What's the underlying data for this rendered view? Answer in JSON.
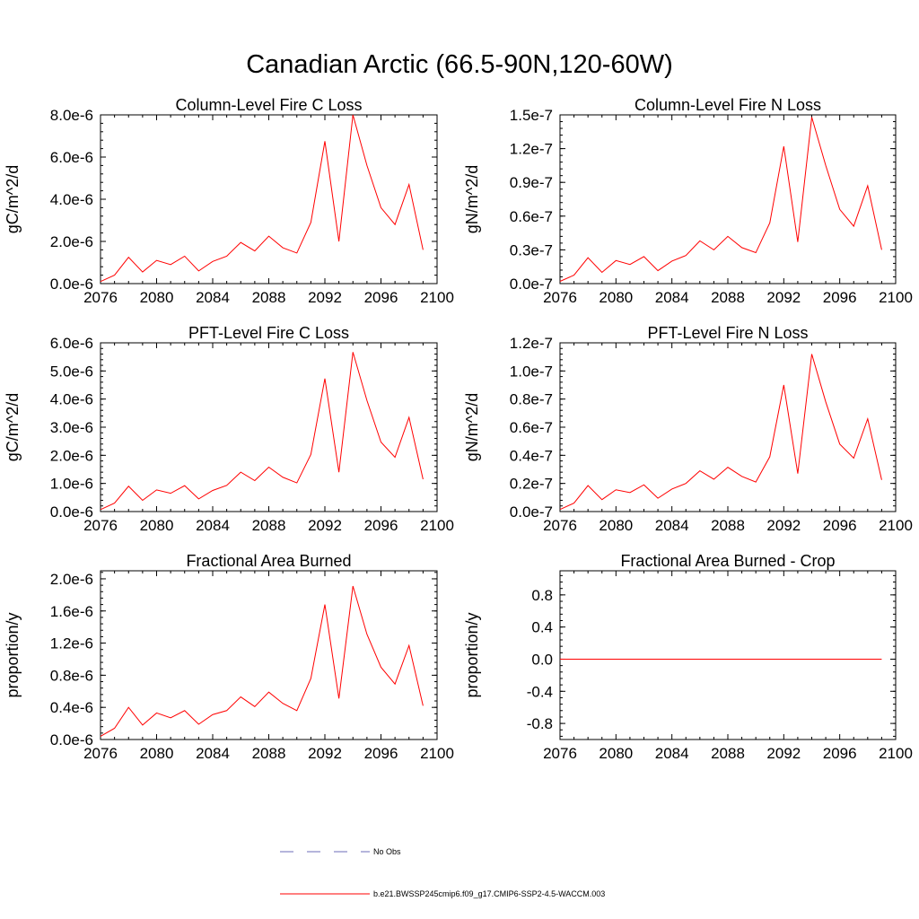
{
  "title": "Canadian Arctic (66.5-90N,120-60W)",
  "colors": {
    "model": "#ff0000",
    "obs": "#6b6bb8",
    "axis": "#000000"
  },
  "legend": [
    {
      "label": "No Obs",
      "style": "dashed",
      "color": "#6b6bb8"
    },
    {
      "label": "b.e21.BWSSP245cmip6.f09_g17.CMIP6-SSP2-4.5-WACCM.003",
      "style": "solid",
      "color": "#ff0000"
    }
  ],
  "chart_data": [
    {
      "type": "line",
      "title": "Column-Level Fire C Loss",
      "ylabel": "gC/m^2/d",
      "xlim": [
        2076,
        2100
      ],
      "ylim": [
        0,
        8e-06
      ],
      "xticks": [
        2076,
        2080,
        2084,
        2088,
        2092,
        2096,
        2100
      ],
      "yticks": [
        0,
        2e-06,
        4e-06,
        6e-06,
        8e-06
      ],
      "yticklabels": [
        "0.0e-6",
        "2.0e-6",
        "4.0e-6",
        "6.0e-6",
        "8.0e-6"
      ],
      "series": [
        {
          "name": "b.e21.BWSSP245cmip6.f09_g17.CMIP6-SSP2-4.5-WACCM.003",
          "x": [
            2076,
            2077,
            2078,
            2079,
            2080,
            2081,
            2082,
            2083,
            2084,
            2085,
            2086,
            2087,
            2088,
            2089,
            2090,
            2091,
            2092,
            2093,
            2094,
            2095,
            2096,
            2097,
            2098,
            2099
          ],
          "values": [
            1e-07,
            4e-07,
            1.25e-06,
            5.5e-07,
            1.1e-06,
            9e-07,
            1.3e-06,
            6e-07,
            1.05e-06,
            1.3e-06,
            1.95e-06,
            1.55e-06,
            2.25e-06,
            1.7e-06,
            1.45e-06,
            2.9e-06,
            6.75e-06,
            2e-06,
            8e-06,
            5.6e-06,
            3.6e-06,
            2.8e-06,
            4.7e-06,
            1.6e-06
          ]
        }
      ]
    },
    {
      "type": "line",
      "title": "Column-Level Fire N Loss",
      "ylabel": "gN/m^2/d",
      "xlim": [
        2076,
        2100
      ],
      "ylim": [
        0,
        1.5e-07
      ],
      "xticks": [
        2076,
        2080,
        2084,
        2088,
        2092,
        2096,
        2100
      ],
      "yticks": [
        0,
        3e-08,
        6e-08,
        9e-08,
        1.2e-07,
        1.5e-07
      ],
      "yticklabels": [
        "0.0e-7",
        "0.3e-7",
        "0.6e-7",
        "0.9e-7",
        "1.2e-7",
        "1.5e-7"
      ],
      "series": [
        {
          "name": "b.e21.BWSSP245cmip6.f09_g17.CMIP6-SSP2-4.5-WACCM.003",
          "x": [
            2076,
            2077,
            2078,
            2079,
            2080,
            2081,
            2082,
            2083,
            2084,
            2085,
            2086,
            2087,
            2088,
            2089,
            2090,
            2091,
            2092,
            2093,
            2094,
            2095,
            2096,
            2097,
            2098,
            2099
          ],
          "values": [
            2e-09,
            7.5e-09,
            2.3e-08,
            1e-08,
            2.05e-08,
            1.7e-08,
            2.4e-08,
            1.15e-08,
            2e-08,
            2.5e-08,
            3.8e-08,
            3e-08,
            4.2e-08,
            3.2e-08,
            2.75e-08,
            5.4e-08,
            1.22e-07,
            3.7e-08,
            1.48e-07,
            1.05e-07,
            6.6e-08,
            5.1e-08,
            8.7e-08,
            3e-08
          ]
        }
      ]
    },
    {
      "type": "line",
      "title": "PFT-Level Fire C Loss",
      "ylabel": "gC/m^2/d",
      "xlim": [
        2076,
        2100
      ],
      "ylim": [
        0,
        6e-06
      ],
      "xticks": [
        2076,
        2080,
        2084,
        2088,
        2092,
        2096,
        2100
      ],
      "yticks": [
        0,
        1e-06,
        2e-06,
        3e-06,
        4e-06,
        5e-06,
        6e-06
      ],
      "yticklabels": [
        "0.0e-6",
        "1.0e-6",
        "2.0e-6",
        "3.0e-6",
        "4.0e-6",
        "5.0e-6",
        "6.0e-6"
      ],
      "series": [
        {
          "name": "b.e21.BWSSP245cmip6.f09_g17.CMIP6-SSP2-4.5-WACCM.003",
          "x": [
            2076,
            2077,
            2078,
            2079,
            2080,
            2081,
            2082,
            2083,
            2084,
            2085,
            2086,
            2087,
            2088,
            2089,
            2090,
            2091,
            2092,
            2093,
            2094,
            2095,
            2096,
            2097,
            2098,
            2099
          ],
          "values": [
            7e-08,
            3e-07,
            9e-07,
            4e-07,
            7.7e-07,
            6.5e-07,
            9.2e-07,
            4.5e-07,
            7.5e-07,
            9.3e-07,
            1.4e-06,
            1.1e-06,
            1.58e-06,
            1.22e-06,
            1.02e-06,
            2.03e-06,
            4.73e-06,
            1.4e-06,
            5.67e-06,
            3.95e-06,
            2.47e-06,
            1.93e-06,
            3.35e-06,
            1.15e-06
          ]
        }
      ]
    },
    {
      "type": "line",
      "title": "PFT-Level Fire N Loss",
      "ylabel": "gN/m^2/d",
      "xlim": [
        2076,
        2100
      ],
      "ylim": [
        0,
        1.2e-07
      ],
      "xticks": [
        2076,
        2080,
        2084,
        2088,
        2092,
        2096,
        2100
      ],
      "yticks": [
        0,
        2e-08,
        4e-08,
        6e-08,
        8e-08,
        1e-07,
        1.2e-07
      ],
      "yticklabels": [
        "0.0e-7",
        "0.2e-7",
        "0.4e-7",
        "0.6e-7",
        "0.8e-7",
        "1.0e-7",
        "1.2e-7"
      ],
      "series": [
        {
          "name": "b.e21.BWSSP245cmip6.f09_g17.CMIP6-SSP2-4.5-WACCM.003",
          "x": [
            2076,
            2077,
            2078,
            2079,
            2080,
            2081,
            2082,
            2083,
            2084,
            2085,
            2086,
            2087,
            2088,
            2089,
            2090,
            2091,
            2092,
            2093,
            2094,
            2095,
            2096,
            2097,
            2098,
            2099
          ],
          "values": [
            1.5e-09,
            6e-09,
            1.85e-08,
            8.5e-09,
            1.55e-08,
            1.35e-08,
            1.9e-08,
            9.5e-09,
            1.6e-08,
            2e-08,
            2.9e-08,
            2.3e-08,
            3.15e-08,
            2.5e-08,
            2.1e-08,
            3.9e-08,
            9e-08,
            2.7e-08,
            1.12e-07,
            7.8e-08,
            4.8e-08,
            3.8e-08,
            6.6e-08,
            2.25e-08
          ]
        }
      ]
    },
    {
      "type": "line",
      "title": "Fractional Area Burned",
      "ylabel": "proportion/y",
      "xlim": [
        2076,
        2100
      ],
      "ylim": [
        0,
        2.1e-06
      ],
      "xticks": [
        2076,
        2080,
        2084,
        2088,
        2092,
        2096,
        2100
      ],
      "yticks": [
        0,
        4e-07,
        8e-07,
        1.2e-06,
        1.6e-06,
        2e-06
      ],
      "yticklabels": [
        "0.0e-6",
        "0.4e-6",
        "0.8e-6",
        "1.2e-6",
        "1.6e-6",
        "2.0e-6"
      ],
      "series": [
        {
          "name": "b.e21.BWSSP245cmip6.f09_g17.CMIP6-SSP2-4.5-WACCM.003",
          "x": [
            2076,
            2077,
            2078,
            2079,
            2080,
            2081,
            2082,
            2083,
            2084,
            2085,
            2086,
            2087,
            2088,
            2089,
            2090,
            2091,
            2092,
            2093,
            2094,
            2095,
            2096,
            2097,
            2098,
            2099
          ],
          "values": [
            4e-08,
            1.4e-07,
            4e-07,
            1.8e-07,
            3.3e-07,
            2.7e-07,
            3.6e-07,
            1.9e-07,
            3.1e-07,
            3.6e-07,
            5.3e-07,
            4.1e-07,
            5.9e-07,
            4.5e-07,
            3.6e-07,
            7.6e-07,
            1.68e-06,
            5.1e-07,
            1.91e-06,
            1.31e-06,
            9e-07,
            6.9e-07,
            1.17e-06,
            4.2e-07
          ]
        }
      ]
    },
    {
      "type": "line",
      "title": "Fractional Area Burned - Crop",
      "ylabel": "proportion/y",
      "xlim": [
        2076,
        2100
      ],
      "ylim": [
        -1.0,
        1.1
      ],
      "xticks": [
        2076,
        2080,
        2084,
        2088,
        2092,
        2096,
        2100
      ],
      "yticks": [
        -0.8,
        -0.4,
        0,
        0.4,
        0.8
      ],
      "yticklabels": [
        "-0.8",
        "-0.4",
        "0.0",
        "0.4",
        "0.8"
      ],
      "series": [
        {
          "name": "b.e21.BWSSP245cmip6.f09_g17.CMIP6-SSP2-4.5-WACCM.003",
          "x": [
            2076,
            2077,
            2078,
            2079,
            2080,
            2081,
            2082,
            2083,
            2084,
            2085,
            2086,
            2087,
            2088,
            2089,
            2090,
            2091,
            2092,
            2093,
            2094,
            2095,
            2096,
            2097,
            2098,
            2099
          ],
          "values": [
            0,
            0,
            0,
            0,
            0,
            0,
            0,
            0,
            0,
            0,
            0,
            0,
            0,
            0,
            0,
            0,
            0,
            0,
            0,
            0,
            0,
            0,
            0,
            0
          ]
        }
      ]
    }
  ]
}
